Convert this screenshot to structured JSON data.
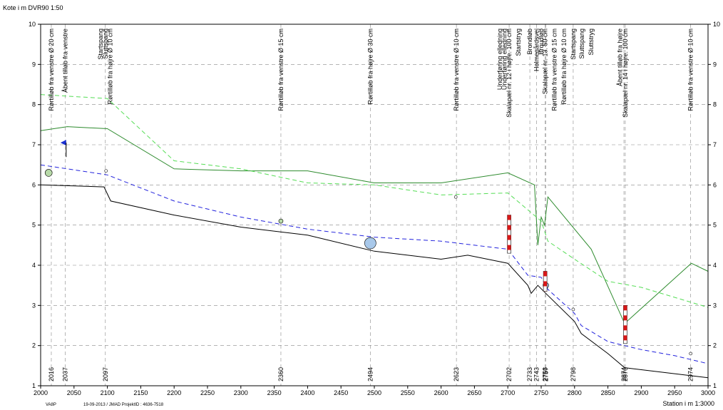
{
  "chart_data": {
    "type": "line",
    "title": "",
    "ylabel": "Kote i m DVR90 1:50",
    "xlabel": "Station i m 1:3000",
    "footer_left": "VA8P",
    "footer_mid": "19-09-2013 / JMAD  ProjektID : 4636-7518",
    "xlim": [
      2000,
      3000
    ],
    "ylim": [
      1,
      10
    ],
    "xticks": [
      2000,
      2050,
      2100,
      2150,
      2200,
      2250,
      2300,
      2350,
      2400,
      2450,
      2500,
      2550,
      2600,
      2650,
      2700,
      2750,
      2800,
      2850,
      2900,
      2950,
      3000
    ],
    "yticks": [
      1,
      2,
      3,
      4,
      5,
      6,
      7,
      8,
      9,
      10
    ],
    "grid": true,
    "series": [
      {
        "name": "",
        "color": "#2e8b2e",
        "dash": "solid",
        "x": [
          2000,
          2040,
          2100,
          2200,
          2300,
          2400,
          2500,
          2600,
          2700,
          2740,
          2745,
          2750,
          2755,
          2760,
          2825,
          2875,
          2975,
          3000
        ],
        "y": [
          7.35,
          7.45,
          7.4,
          6.4,
          6.35,
          6.35,
          6.05,
          6.05,
          6.3,
          6.0,
          4.5,
          5.2,
          5.0,
          5.7,
          4.4,
          2.55,
          4.05,
          3.85
        ]
      },
      {
        "name": "",
        "color": "#55dd55",
        "dash": "6,4",
        "x": [
          2000,
          2100,
          2200,
          2300,
          2400,
          2500,
          2600,
          2700,
          2750,
          2760,
          2800,
          2850,
          2900,
          3000
        ],
        "y": [
          8.25,
          8.15,
          6.6,
          6.4,
          6.05,
          6.0,
          5.75,
          5.8,
          5.1,
          4.6,
          4.15,
          3.6,
          3.45,
          2.95
        ]
      },
      {
        "name": "",
        "color": "#2222dd",
        "dash": "6,4",
        "x": [
          2000,
          2100,
          2200,
          2300,
          2400,
          2500,
          2600,
          2700,
          2730,
          2750,
          2760,
          2800,
          2810,
          2850,
          2875,
          2900,
          2950,
          3000
        ],
        "y": [
          6.5,
          6.25,
          5.6,
          5.2,
          4.9,
          4.7,
          4.6,
          4.4,
          3.75,
          3.7,
          3.4,
          2.8,
          2.5,
          2.1,
          2.0,
          1.9,
          1.75,
          1.55
        ]
      },
      {
        "name": "",
        "color": "#000000",
        "dash": "solid",
        "x": [
          2000,
          2095,
          2105,
          2200,
          2300,
          2400,
          2500,
          2600,
          2640,
          2700,
          2730,
          2735,
          2745,
          2760,
          2800,
          2810,
          2850,
          2875,
          2900,
          3000
        ],
        "y": [
          6.0,
          5.95,
          5.6,
          5.25,
          4.95,
          4.75,
          4.35,
          4.15,
          4.25,
          4.05,
          3.5,
          3.3,
          3.5,
          3.25,
          2.6,
          2.3,
          1.8,
          1.45,
          1.4,
          1.2
        ]
      }
    ],
    "station_labels": [
      2016,
      2037,
      2097,
      2360,
      2494,
      2623,
      2702,
      2733,
      2743,
      2756,
      2757,
      2798,
      2874,
      2876,
      2974
    ],
    "annotations": [
      {
        "x": 2016,
        "text": "Rørtilløb fra venstre Ø 20 cm"
      },
      {
        "x": 2037,
        "text": "Åbent tilløb fra venstre"
      },
      {
        "x": 2090,
        "text": "Startspang"
      },
      {
        "x": 2097,
        "text": "Sluttspang"
      },
      {
        "x": 2104,
        "text": "Rørtilløb fra højre Ø 10 cm"
      },
      {
        "x": 2360,
        "text": "Rørtilløb fra venstre Ø 15 cm"
      },
      {
        "x": 2494,
        "text": "Rørtilløb fra højre Ø 30 cm"
      },
      {
        "x": 2623,
        "text": "Rørtilløb fra venstre Ø 10 cm"
      },
      {
        "x": 2688,
        "text": "Underføring elledning"
      },
      {
        "x": 2695,
        "text": "Underføring elledning"
      },
      {
        "x": 2702,
        "text": "Skalapæl nr. 12 i højre. 100 cm"
      },
      {
        "x": 2716,
        "text": "Startstryg"
      },
      {
        "x": 2733,
        "text": "Brondløb"
      },
      {
        "x": 2743,
        "text": "Holmegårdsvej"
      },
      {
        "x": 2750,
        "text": "Broudløb"
      },
      {
        "x": 2756,
        "text": "Skalapæl nr. 13. 50 cm"
      },
      {
        "x": 2770,
        "text": "Rørtilløb fra venstre Ø 15 cm"
      },
      {
        "x": 2784,
        "text": "Rørtilløb fra højre Ø 10 cm"
      },
      {
        "x": 2798,
        "text": "Startspang"
      },
      {
        "x": 2811,
        "text": "Sluttspang"
      },
      {
        "x": 2825,
        "text": "Sluttstryg"
      },
      {
        "x": 2868,
        "text": "Åbent tilløb fra højre"
      },
      {
        "x": 2876,
        "text": "Skalapæl nr. 14 i højre. 100 cm"
      },
      {
        "x": 2974,
        "text": "Rørtilløb fra venstre Ø 10 cm"
      }
    ],
    "markers": [
      {
        "kind": "circle-green",
        "x": 2012,
        "y": 6.3,
        "r": 5
      },
      {
        "kind": "circle-blue",
        "x": 2494,
        "y": 4.55,
        "r": 8
      },
      {
        "kind": "circle-green",
        "x": 2360,
        "y": 5.1,
        "r": 3
      },
      {
        "kind": "circle-blue",
        "x": 2757,
        "y": 3.5,
        "r": 4
      },
      {
        "kind": "circle-white",
        "x": 2098,
        "y": 6.35,
        "r": 2
      },
      {
        "kind": "circle-white",
        "x": 2622,
        "y": 5.7,
        "r": 2
      },
      {
        "kind": "circle-white",
        "x": 2798,
        "y": 2.9,
        "r": 2
      },
      {
        "kind": "circle-white",
        "x": 2974,
        "y": 1.8,
        "r": 2
      },
      {
        "kind": "triangle-blue",
        "x": 2034,
        "y": 7.05,
        "r": 4
      }
    ],
    "gauges": [
      {
        "x": 2702,
        "y_low": 4.3,
        "y_high": 5.25
      },
      {
        "x": 2756,
        "y_low": 3.35,
        "y_high": 3.85
      },
      {
        "x": 2876,
        "y_low": 2.05,
        "y_high": 3.0
      }
    ],
    "colors": {
      "grid": "#888888",
      "gauge_red": "#d81818",
      "gauge_white": "#ffffff"
    }
  }
}
